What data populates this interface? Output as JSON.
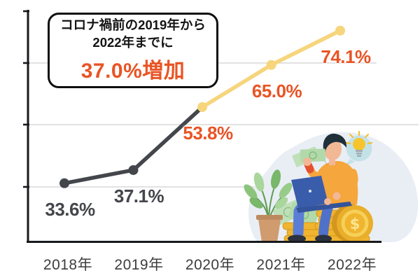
{
  "callout": {
    "line1": "コロナ禍前の2019年から",
    "line2": "2022年までに",
    "highlight": "37.0%増加"
  },
  "chart_data": {
    "type": "line",
    "title": "",
    "xlabel": "",
    "ylabel": "",
    "categories": [
      "2018年",
      "2019年",
      "2020年",
      "2021年",
      "2022年"
    ],
    "values": [
      33.6,
      37.1,
      53.8,
      65.0,
      74.1
    ],
    "value_labels": [
      "33.6%",
      "37.1%",
      "53.8%",
      "65.0%",
      "74.1%"
    ],
    "label_colors": [
      "#43464b",
      "#43464b",
      "#e95425",
      "#e95425",
      "#e95425"
    ],
    "point_colors": [
      "#43464b",
      "#43464b",
      "#f6d57c",
      "#f6d57c",
      "#f6d57c"
    ],
    "segments": [
      {
        "name": "2018-2020",
        "color": "#43464b",
        "from": 0,
        "to": 2
      },
      {
        "name": "2020-2022",
        "color": "#f6d57c",
        "from": 2,
        "to": 4
      }
    ],
    "ylim": [
      20,
      80
    ],
    "grid": true,
    "legend": "none"
  },
  "colors": {
    "accent_orange": "#e95425",
    "line_dark": "#43464b",
    "line_yellow": "#f6d57c",
    "grid": "#d9d9d9",
    "axis": "#17191c",
    "xlabel_text": "#3d3d3d"
  },
  "illustration": {
    "icons": [
      "person-figure",
      "laptop-icon",
      "cash-in-hand-icon",
      "money-bills-icon",
      "coin-stack-icon",
      "dollar-coin-icon",
      "plant-icon",
      "lightbulb-icon"
    ]
  }
}
